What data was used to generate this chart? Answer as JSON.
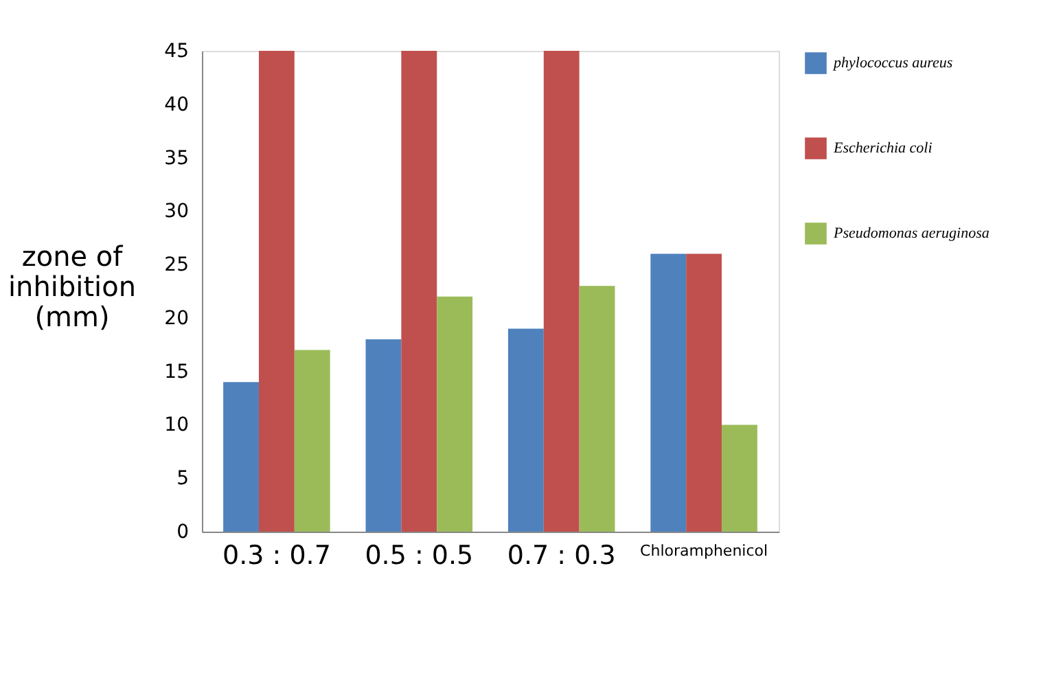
{
  "chart_data": {
    "type": "bar",
    "ylabel": "zone of\ninhibition\n(mm)",
    "categories": [
      "0.3 : 0.7",
      "0.5 : 0.5",
      "0.7 : 0.3",
      "Chloramphenicol"
    ],
    "series": [
      {
        "name": "phylococcus aureus",
        "color": "#4f81bd",
        "values": [
          14,
          18,
          19,
          26
        ]
      },
      {
        "name": "Escherichia coli",
        "color": "#c0504d",
        "values": [
          45,
          45,
          45,
          26
        ]
      },
      {
        "name": "Pseudomonas aeruginosa",
        "color": "#9bbb59",
        "values": [
          17,
          22,
          23,
          10
        ]
      }
    ],
    "ylim": [
      0,
      45
    ],
    "yticks": [
      0,
      5,
      10,
      15,
      20,
      25,
      30,
      35,
      40,
      45
    ],
    "grid": false,
    "legend": "right"
  }
}
